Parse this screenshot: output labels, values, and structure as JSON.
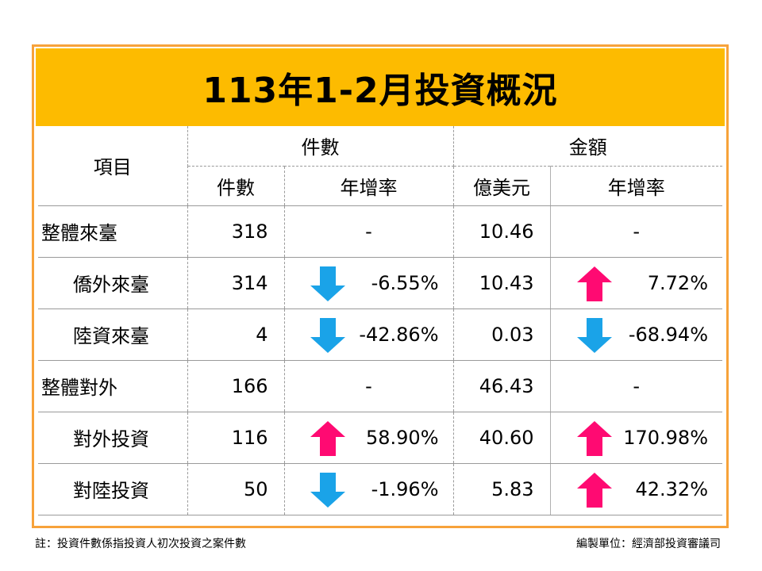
{
  "title": "113年1-2月投資概況",
  "header": {
    "item": "項目",
    "count_group": "件數",
    "amount_group": "金額",
    "count": "件數",
    "count_rate": "年增率",
    "amount_unit": "億美元",
    "amount_rate": "年增率"
  },
  "rows": [
    {
      "name": "整體來臺",
      "count": "318",
      "count_rate": "-",
      "count_dir": "none",
      "amount": "10.46",
      "amount_rate": "-",
      "amount_dir": "none"
    },
    {
      "name": "僑外來臺",
      "count": "314",
      "count_rate": "-6.55%",
      "count_dir": "down",
      "amount": "10.43",
      "amount_rate": "7.72%",
      "amount_dir": "up"
    },
    {
      "name": "陸資來臺",
      "count": "4",
      "count_rate": "-42.86%",
      "count_dir": "down",
      "amount": "0.03",
      "amount_rate": "-68.94%",
      "amount_dir": "down"
    },
    {
      "name": "整體對外",
      "count": "166",
      "count_rate": "-",
      "count_dir": "none",
      "amount": "46.43",
      "amount_rate": "-",
      "amount_dir": "none"
    },
    {
      "name": "對外投資",
      "count": "116",
      "count_rate": "58.90%",
      "count_dir": "up",
      "amount": "40.60",
      "amount_rate": "170.98%",
      "amount_dir": "up"
    },
    {
      "name": "對陸投資",
      "count": "50",
      "count_rate": "-1.96%",
      "count_dir": "down",
      "amount": "5.83",
      "amount_rate": "42.32%",
      "amount_dir": "up"
    }
  ],
  "footnote_left": "註：投資件數係指投資人初次投資之案件數",
  "footnote_right": "編製單位：經濟部投資審議司",
  "colors": {
    "title_bg": "#fdbb00",
    "border": "#f7a23a",
    "arrow_up": "#ff0a72",
    "arrow_down": "#1aa3e8"
  },
  "icons": {
    "up": "arrow-up-icon",
    "down": "arrow-down-icon"
  }
}
